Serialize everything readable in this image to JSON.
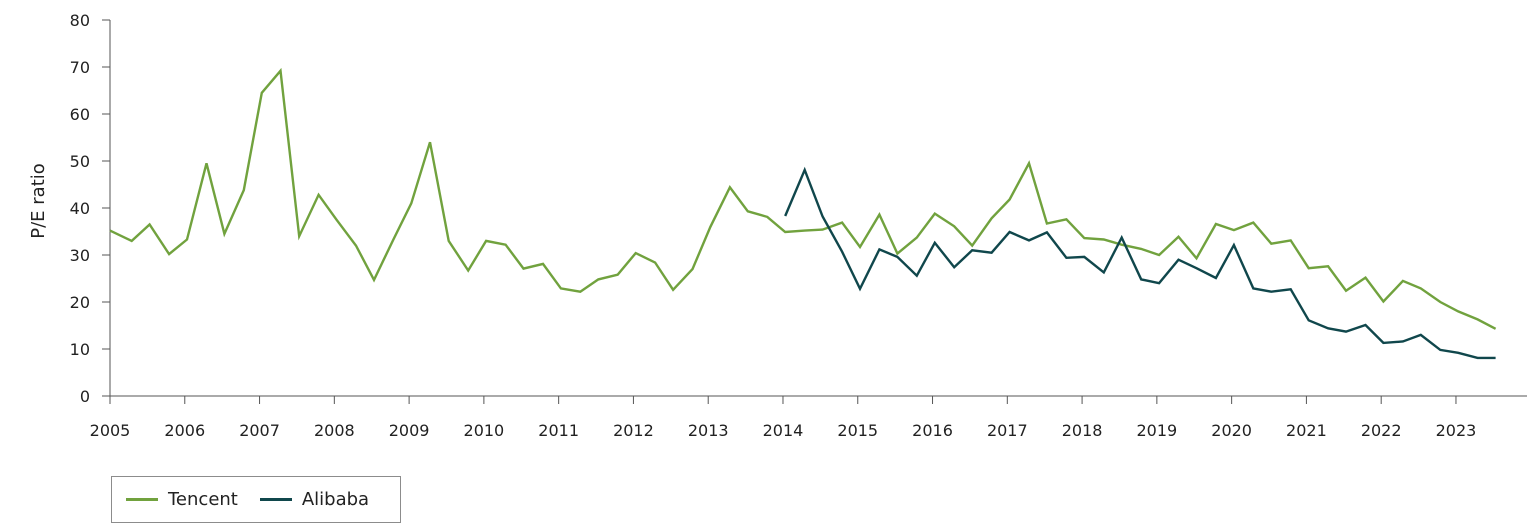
{
  "chart_data": {
    "type": "line",
    "title": "",
    "xlabel": "",
    "ylabel": "P/E ratio",
    "xlim": [
      2005,
      2023.95
    ],
    "ylim": [
      0,
      80
    ],
    "yticks": [
      0,
      10,
      20,
      30,
      40,
      50,
      60,
      70,
      80
    ],
    "xticks": [
      "2005",
      "2006",
      "2007",
      "2008",
      "2009",
      "2010",
      "2011",
      "2012",
      "2013",
      "2014",
      "2015",
      "2016",
      "2017",
      "2018",
      "2019",
      "2020",
      "2021",
      "2022",
      "2023"
    ],
    "grid": false,
    "legend_position": "bottom-left",
    "series": [
      {
        "name": "Tencent",
        "color": "#71a23e",
        "points": [
          [
            2005.0,
            35.2
          ],
          [
            2005.29,
            33.0
          ],
          [
            2005.53,
            36.5
          ],
          [
            2005.79,
            30.2
          ],
          [
            2006.03,
            33.3
          ],
          [
            2006.29,
            49.5
          ],
          [
            2006.53,
            34.5
          ],
          [
            2006.79,
            43.8
          ],
          [
            2007.03,
            64.5
          ],
          [
            2007.28,
            69.2
          ],
          [
            2007.53,
            34.0
          ],
          [
            2007.79,
            42.8
          ],
          [
            2008.03,
            37.5
          ],
          [
            2008.29,
            32.0
          ],
          [
            2008.53,
            24.7
          ],
          [
            2008.79,
            33.3
          ],
          [
            2009.03,
            41.0
          ],
          [
            2009.28,
            54.0
          ],
          [
            2009.53,
            33.0
          ],
          [
            2009.79,
            26.7
          ],
          [
            2010.03,
            33.0
          ],
          [
            2010.29,
            32.2
          ],
          [
            2010.53,
            27.1
          ],
          [
            2010.79,
            28.1
          ],
          [
            2011.03,
            22.9
          ],
          [
            2011.29,
            22.2
          ],
          [
            2011.53,
            24.8
          ],
          [
            2011.79,
            25.8
          ],
          [
            2012.03,
            30.4
          ],
          [
            2012.29,
            28.4
          ],
          [
            2012.53,
            22.6
          ],
          [
            2012.79,
            27.0
          ],
          [
            2013.03,
            36.0
          ],
          [
            2013.29,
            44.4
          ],
          [
            2013.53,
            39.3
          ],
          [
            2013.79,
            38.1
          ],
          [
            2014.03,
            34.9
          ],
          [
            2014.29,
            35.2
          ],
          [
            2014.53,
            35.4
          ],
          [
            2014.79,
            36.9
          ],
          [
            2015.03,
            31.7
          ],
          [
            2015.29,
            38.6
          ],
          [
            2015.53,
            30.3
          ],
          [
            2015.79,
            33.7
          ],
          [
            2016.03,
            38.8
          ],
          [
            2016.29,
            36.1
          ],
          [
            2016.53,
            32.0
          ],
          [
            2016.79,
            37.8
          ],
          [
            2017.03,
            41.8
          ],
          [
            2017.29,
            49.5
          ],
          [
            2017.53,
            36.7
          ],
          [
            2017.79,
            37.6
          ],
          [
            2018.03,
            33.6
          ],
          [
            2018.29,
            33.3
          ],
          [
            2018.53,
            32.2
          ],
          [
            2018.79,
            31.3
          ],
          [
            2019.03,
            30.0
          ],
          [
            2019.29,
            33.9
          ],
          [
            2019.53,
            29.3
          ],
          [
            2019.79,
            36.6
          ],
          [
            2020.03,
            35.3
          ],
          [
            2020.29,
            36.9
          ],
          [
            2020.53,
            32.4
          ],
          [
            2020.79,
            33.1
          ],
          [
            2021.03,
            27.2
          ],
          [
            2021.29,
            27.6
          ],
          [
            2021.53,
            22.4
          ],
          [
            2021.79,
            25.2
          ],
          [
            2022.03,
            20.1
          ],
          [
            2022.29,
            24.5
          ],
          [
            2022.53,
            22.9
          ],
          [
            2022.79,
            20.0
          ],
          [
            2023.03,
            18.0
          ],
          [
            2023.29,
            16.3
          ],
          [
            2023.53,
            14.3
          ]
        ]
      },
      {
        "name": "Alibaba",
        "color": "#10474c",
        "points": [
          [
            2014.03,
            38.3
          ],
          [
            2014.29,
            48.1
          ],
          [
            2014.53,
            38.2
          ],
          [
            2014.79,
            30.7
          ],
          [
            2015.03,
            22.8
          ],
          [
            2015.29,
            31.2
          ],
          [
            2015.53,
            29.6
          ],
          [
            2015.79,
            25.6
          ],
          [
            2016.03,
            32.6
          ],
          [
            2016.29,
            27.4
          ],
          [
            2016.53,
            31.0
          ],
          [
            2016.79,
            30.5
          ],
          [
            2017.03,
            34.9
          ],
          [
            2017.29,
            33.1
          ],
          [
            2017.53,
            34.8
          ],
          [
            2017.79,
            29.4
          ],
          [
            2018.03,
            29.6
          ],
          [
            2018.29,
            26.3
          ],
          [
            2018.53,
            33.7
          ],
          [
            2018.79,
            24.8
          ],
          [
            2019.03,
            24.0
          ],
          [
            2019.29,
            29.0
          ],
          [
            2019.53,
            27.2
          ],
          [
            2019.79,
            25.1
          ],
          [
            2020.03,
            32.1
          ],
          [
            2020.29,
            22.9
          ],
          [
            2020.53,
            22.2
          ],
          [
            2020.79,
            22.7
          ],
          [
            2021.03,
            16.1
          ],
          [
            2021.29,
            14.4
          ],
          [
            2021.53,
            13.7
          ],
          [
            2021.79,
            15.1
          ],
          [
            2022.03,
            11.3
          ],
          [
            2022.29,
            11.6
          ],
          [
            2022.53,
            13.0
          ],
          [
            2022.79,
            9.8
          ],
          [
            2023.03,
            9.2
          ],
          [
            2023.29,
            8.1
          ],
          [
            2023.53,
            8.1
          ]
        ]
      }
    ]
  }
}
